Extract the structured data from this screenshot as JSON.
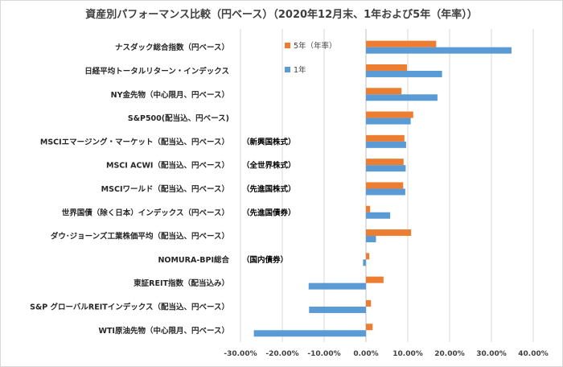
{
  "chart_data": {
    "type": "bar",
    "orientation": "horizontal",
    "title": "資産別パフォーマンス比較（円ベース）（2020年12月末、1年および5年（年率））",
    "categories": [
      "ナスダック総合指数（円ベース）",
      "日経平均トータルリターン・インデックス",
      "NY金先物（中心限月、円ベース）",
      "S&P500(配当込、円ベース)",
      "MSCIエマージング・マーケット（配当込、円ベース）",
      "MSCI ACWI（配当込、円ベース）",
      "MSCIワールド（配当込、円ベース）",
      "世界国債（除く日本）インデックス（円ベース）",
      "ダウ･ジョーンズ工業株価平均（配当込、円ベース）",
      "NOMURA-BPI総合",
      "東証REIT指数（配当込み）",
      "S&P グローバルREITインデックス（配当込、円ベース）",
      "WTI原油先物（中心限月、円ベース）"
    ],
    "category_notes": [
      "",
      "",
      "",
      "",
      "（新興国株式）",
      "（全世界株式）",
      "（先進国株式）",
      "（先進国債券）",
      "",
      "（国内債券）",
      "",
      "",
      ""
    ],
    "series": [
      {
        "name": "5年（年率）",
        "color": "#ed7d31",
        "values": [
          16.8,
          9.8,
          8.5,
          11.3,
          9.2,
          9.0,
          8.9,
          1.0,
          10.8,
          0.8,
          4.2,
          1.2,
          1.6
        ]
      },
      {
        "name": "1年",
        "color": "#5b9bd5",
        "values": [
          34.8,
          18.2,
          17.1,
          10.7,
          9.6,
          9.5,
          9.4,
          5.8,
          2.4,
          -0.7,
          -13.7,
          -13.6,
          -26.8
        ]
      }
    ],
    "x_ticks": [
      "-30.00%",
      "-20.00%",
      "-10.00%",
      "0.00%",
      "10.00%",
      "20.00%",
      "30.00%",
      "40.00%"
    ],
    "xlim": [
      -30,
      40
    ],
    "grid": true,
    "legend_position": "top-right"
  }
}
